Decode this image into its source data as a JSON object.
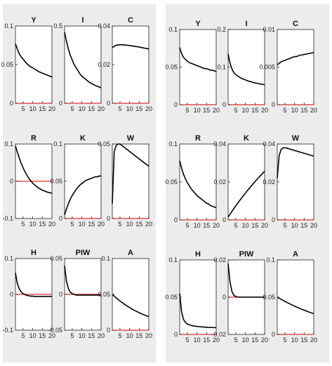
{
  "chart_data": [
    {
      "type": "line",
      "title": "Y",
      "x": [
        1,
        2,
        3,
        4,
        5,
        6,
        7,
        8,
        9,
        10,
        11,
        12,
        13,
        14,
        15,
        16,
        17,
        18,
        19,
        20
      ],
      "series": [
        {
          "values": [
            0.077,
            0.07,
            0.064,
            0.06,
            0.057,
            0.054,
            0.051,
            0.049,
            0.047,
            0.046,
            0.044,
            0.043,
            0.041,
            0.04,
            0.039,
            0.038,
            0.037,
            0.036,
            0.035,
            0.034
          ]
        }
      ],
      "zero_line": true,
      "ylim": [
        0,
        0.1
      ],
      "yticks": [
        "0.1",
        "0.05",
        "0"
      ],
      "xticks": [
        "5",
        "10",
        "15",
        "20"
      ]
    },
    {
      "type": "line",
      "title": "I",
      "x": [
        1,
        2,
        3,
        4,
        5,
        6,
        7,
        8,
        9,
        10,
        11,
        12,
        13,
        14,
        15,
        16,
        17,
        18,
        19,
        20
      ],
      "series": [
        {
          "values": [
            0.46,
            0.4,
            0.35,
            0.31,
            0.28,
            0.25,
            0.23,
            0.21,
            0.19,
            0.175,
            0.165,
            0.155,
            0.145,
            0.135,
            0.128,
            0.121,
            0.115,
            0.11,
            0.105,
            0.1
          ]
        }
      ],
      "zero_line": true,
      "ylim": [
        0,
        0.5
      ],
      "yticks": [
        "0.5",
        "0"
      ],
      "xticks": [
        "5",
        "10",
        "15",
        "20"
      ]
    },
    {
      "type": "line",
      "title": "C",
      "x": [
        1,
        2,
        3,
        4,
        5,
        6,
        7,
        8,
        9,
        10,
        11,
        12,
        13,
        14,
        15,
        16,
        17,
        18,
        19,
        20
      ],
      "series": [
        {
          "values": [
            0.0288,
            0.0295,
            0.03,
            0.0302,
            0.0303,
            0.0303,
            0.0302,
            0.0301,
            0.03,
            0.0299,
            0.0297,
            0.0296,
            0.0294,
            0.0293,
            0.0291,
            0.0289,
            0.0287,
            0.0285,
            0.0283,
            0.0281
          ]
        }
      ],
      "zero_line": true,
      "ylim": [
        0,
        0.04
      ],
      "yticks": [
        "0.04",
        "0.02",
        "0"
      ],
      "xticks": [
        "5",
        "10",
        "15",
        "20"
      ]
    },
    {
      "type": "line",
      "title": "R",
      "x": [
        1,
        2,
        3,
        4,
        5,
        6,
        7,
        8,
        9,
        10,
        11,
        12,
        13,
        14,
        15,
        16,
        17,
        18,
        19,
        20
      ],
      "series": [
        {
          "values": [
            0.095,
            0.078,
            0.062,
            0.048,
            0.036,
            0.025,
            0.016,
            0.008,
            0.001,
            -0.005,
            -0.01,
            -0.014,
            -0.018,
            -0.021,
            -0.024,
            -0.026,
            -0.028,
            -0.03,
            -0.031,
            -0.032
          ]
        }
      ],
      "zero_line": true,
      "ylim": [
        -0.1,
        0.1
      ],
      "yticks": [
        "0.1",
        "0",
        "-0.1"
      ],
      "xticks": [
        "5",
        "10",
        "15",
        "20"
      ]
    },
    {
      "type": "line",
      "title": "K",
      "x": [
        1,
        2,
        3,
        4,
        5,
        6,
        7,
        8,
        9,
        10,
        11,
        12,
        13,
        14,
        15,
        16,
        17,
        18,
        19,
        20
      ],
      "series": [
        {
          "values": [
            0.005,
            0.013,
            0.02,
            0.026,
            0.031,
            0.035,
            0.039,
            0.042,
            0.045,
            0.047,
            0.049,
            0.051,
            0.052,
            0.053,
            0.054,
            0.055,
            0.056,
            0.056,
            0.057,
            0.057
          ]
        }
      ],
      "zero_line": true,
      "ylim": [
        0,
        0.1
      ],
      "yticks": [
        "0.1",
        "0.05",
        "0"
      ],
      "xticks": [
        "5",
        "10",
        "15",
        "20"
      ]
    },
    {
      "type": "line",
      "title": "W",
      "x": [
        1,
        2,
        3,
        4,
        5,
        6,
        7,
        8,
        9,
        10,
        11,
        12,
        13,
        14,
        15,
        16,
        17,
        18,
        19,
        20
      ],
      "series": [
        {
          "values": [
            0.01,
            0.045,
            0.049,
            0.05,
            0.05,
            0.049,
            0.048,
            0.047,
            0.046,
            0.045,
            0.044,
            0.043,
            0.042,
            0.041,
            0.04,
            0.039,
            0.038,
            0.037,
            0.036,
            0.035
          ]
        }
      ],
      "zero_line": true,
      "ylim": [
        0,
        0.05
      ],
      "yticks": [
        "0.05",
        "0"
      ],
      "xticks": [
        "5",
        "10",
        "15",
        "20"
      ]
    },
    {
      "type": "line",
      "title": "H",
      "x": [
        1,
        2,
        3,
        4,
        5,
        6,
        7,
        8,
        9,
        10,
        11,
        12,
        13,
        14,
        15,
        16,
        17,
        18,
        19,
        20
      ],
      "series": [
        {
          "values": [
            0.06,
            0.03,
            0.015,
            0.007,
            0.002,
            -0.001,
            -0.003,
            -0.004,
            -0.005,
            -0.005,
            -0.006,
            -0.006,
            -0.006,
            -0.006,
            -0.006,
            -0.006,
            -0.006,
            -0.006,
            -0.006,
            -0.006
          ]
        }
      ],
      "zero_line": true,
      "ylim": [
        -0.1,
        0.1
      ],
      "yticks": [
        "0.1",
        "0",
        "-0.1"
      ],
      "xticks": [
        "5",
        "10",
        "15",
        "20"
      ]
    },
    {
      "type": "line",
      "title": "PIW",
      "x": [
        1,
        2,
        3,
        4,
        5,
        6,
        7,
        8,
        9,
        10,
        11,
        12,
        13,
        14,
        15,
        16,
        17,
        18,
        19,
        20
      ],
      "series": [
        {
          "values": [
            0.04,
            0.018,
            0.008,
            0.003,
            0.001,
            0.0,
            -0.001,
            -0.001,
            -0.001,
            -0.001,
            -0.001,
            -0.001,
            -0.001,
            -0.001,
            -0.001,
            -0.001,
            -0.001,
            -0.001,
            -0.001,
            -0.001
          ]
        }
      ],
      "zero_line": true,
      "ylim": [
        -0.05,
        0.05
      ],
      "yticks": [
        "0.05",
        "0",
        "-0.05"
      ],
      "xticks": [
        "5",
        "10",
        "15",
        "20"
      ]
    },
    {
      "type": "line",
      "title": "A",
      "x": [
        1,
        2,
        3,
        4,
        5,
        6,
        7,
        8,
        9,
        10,
        11,
        12,
        13,
        14,
        15,
        16,
        17,
        18,
        19,
        20
      ],
      "series": [
        {
          "values": [
            0.05,
            0.0475,
            0.0451,
            0.0429,
            0.0407,
            0.0387,
            0.0368,
            0.0349,
            0.0332,
            0.0315,
            0.0299,
            0.0284,
            0.027,
            0.0257,
            0.0244,
            0.0232,
            0.022,
            0.0209,
            0.0199,
            0.0189
          ]
        }
      ],
      "zero_line": true,
      "ylim": [
        0,
        0.1
      ],
      "yticks": [
        "0.1",
        "0.05",
        "0"
      ],
      "xticks": [
        "5",
        "10",
        "15",
        "20"
      ]
    },
    {
      "type": "line",
      "title": "Y",
      "x": [
        1,
        2,
        3,
        4,
        5,
        6,
        7,
        8,
        9,
        10,
        11,
        12,
        13,
        14,
        15,
        16,
        17,
        18,
        19,
        20
      ],
      "series": [
        {
          "values": [
            0.076,
            0.068,
            0.063,
            0.06,
            0.058,
            0.056,
            0.055,
            0.054,
            0.053,
            0.052,
            0.051,
            0.05,
            0.049,
            0.048,
            0.048,
            0.047,
            0.046,
            0.046,
            0.045,
            0.044
          ]
        }
      ],
      "zero_line": true,
      "ylim": [
        0,
        0.1
      ],
      "yticks": [
        "0.1",
        "0.05",
        "0"
      ],
      "xticks": [
        "5",
        "10",
        "15",
        "20"
      ]
    },
    {
      "type": "line",
      "title": "I",
      "x": [
        1,
        2,
        3,
        4,
        5,
        6,
        7,
        8,
        9,
        10,
        11,
        12,
        13,
        14,
        15,
        16,
        17,
        18,
        19,
        20
      ],
      "series": [
        {
          "values": [
            0.135,
            0.11,
            0.095,
            0.085,
            0.08,
            0.076,
            0.073,
            0.07,
            0.068,
            0.066,
            0.064,
            0.062,
            0.061,
            0.059,
            0.058,
            0.057,
            0.056,
            0.055,
            0.054,
            0.053
          ]
        }
      ],
      "zero_line": true,
      "ylim": [
        0,
        0.2
      ],
      "yticks": [
        "0.2",
        "0.1",
        "0"
      ],
      "xticks": [
        "5",
        "10",
        "15",
        "20"
      ]
    },
    {
      "type": "line",
      "title": "C",
      "x": [
        1,
        2,
        3,
        4,
        5,
        6,
        7,
        8,
        9,
        10,
        11,
        12,
        13,
        14,
        15,
        16,
        17,
        18,
        19,
        20
      ],
      "series": [
        {
          "values": [
            0.0053,
            0.0055,
            0.0057,
            0.0058,
            0.0059,
            0.006,
            0.0061,
            0.0062,
            0.0063,
            0.0064,
            0.0064,
            0.0065,
            0.0066,
            0.0066,
            0.0067,
            0.0067,
            0.0068,
            0.0068,
            0.0069,
            0.0069
          ]
        }
      ],
      "zero_line": true,
      "ylim": [
        0,
        0.01
      ],
      "yticks": [
        "0.01",
        "0.005",
        "0"
      ],
      "xticks": [
        "5",
        "10",
        "15",
        "20"
      ]
    },
    {
      "type": "line",
      "title": "R",
      "x": [
        1,
        2,
        3,
        4,
        5,
        6,
        7,
        8,
        9,
        10,
        11,
        12,
        13,
        14,
        15,
        16,
        17,
        18,
        19,
        20
      ],
      "series": [
        {
          "values": [
            0.078,
            0.068,
            0.06,
            0.054,
            0.049,
            0.045,
            0.041,
            0.038,
            0.035,
            0.032,
            0.03,
            0.028,
            0.026,
            0.024,
            0.022,
            0.021,
            0.019,
            0.018,
            0.017,
            0.016
          ]
        }
      ],
      "zero_line": true,
      "ylim": [
        0,
        0.1
      ],
      "yticks": [
        "0.1",
        "0.05",
        "0"
      ],
      "xticks": [
        "5",
        "10",
        "15",
        "20"
      ]
    },
    {
      "type": "line",
      "title": "K",
      "x": [
        1,
        2,
        3,
        4,
        5,
        6,
        7,
        8,
        9,
        10,
        11,
        12,
        13,
        14,
        15,
        16,
        17,
        18,
        19,
        20
      ],
      "series": [
        {
          "values": [
            0.0015,
            0.003,
            0.0045,
            0.006,
            0.0074,
            0.0088,
            0.0102,
            0.0115,
            0.0128,
            0.0141,
            0.0154,
            0.0166,
            0.0178,
            0.019,
            0.0202,
            0.0213,
            0.0224,
            0.0235,
            0.0246,
            0.0257
          ]
        }
      ],
      "zero_line": true,
      "ylim": [
        0,
        0.04
      ],
      "yticks": [
        "0.04",
        "0.02",
        "0"
      ],
      "xticks": [
        "5",
        "10",
        "15",
        "20"
      ]
    },
    {
      "type": "line",
      "title": "W",
      "x": [
        1,
        2,
        3,
        4,
        5,
        6,
        7,
        8,
        9,
        10,
        11,
        12,
        13,
        14,
        15,
        16,
        17,
        18,
        19,
        20
      ],
      "series": [
        {
          "values": [
            0.022,
            0.034,
            0.037,
            0.038,
            0.038,
            0.0378,
            0.0375,
            0.0372,
            0.0369,
            0.0366,
            0.0363,
            0.036,
            0.0357,
            0.0354,
            0.0351,
            0.0348,
            0.0345,
            0.0342,
            0.0339,
            0.0336
          ]
        }
      ],
      "zero_line": true,
      "ylim": [
        0,
        0.04
      ],
      "yticks": [
        "0.04",
        "0.02",
        "0"
      ],
      "xticks": [
        "5",
        "10",
        "15",
        "20"
      ]
    },
    {
      "type": "line",
      "title": "H",
      "x": [
        1,
        2,
        3,
        4,
        5,
        6,
        7,
        8,
        9,
        10,
        11,
        12,
        13,
        14,
        15,
        16,
        17,
        18,
        19,
        20
      ],
      "series": [
        {
          "values": [
            0.055,
            0.03,
            0.02,
            0.016,
            0.014,
            0.013,
            0.012,
            0.0115,
            0.011,
            0.0107,
            0.0104,
            0.0102,
            0.01,
            0.0098,
            0.0096,
            0.0094,
            0.0093,
            0.0092,
            0.0091,
            0.009
          ]
        }
      ],
      "zero_line": true,
      "ylim": [
        0,
        0.1
      ],
      "yticks": [
        "0.1",
        "0.05",
        "0"
      ],
      "xticks": [
        "5",
        "10",
        "15",
        "20"
      ]
    },
    {
      "type": "line",
      "title": "PIW",
      "x": [
        1,
        2,
        3,
        4,
        5,
        6,
        7,
        8,
        9,
        10,
        11,
        12,
        13,
        14,
        15,
        16,
        17,
        18,
        19,
        20
      ],
      "series": [
        {
          "values": [
            0.018,
            0.008,
            0.003,
            0.001,
            0.0003,
            0.0001,
            0.0,
            0.0,
            0.0,
            0.0,
            0.0,
            0.0,
            0.0,
            0.0,
            0.0,
            0.0,
            0.0,
            0.0,
            0.0,
            0.0
          ]
        }
      ],
      "zero_line": true,
      "ylim": [
        -0.02,
        0.02
      ],
      "yticks": [
        "0.02",
        "0",
        "-0.02"
      ],
      "xticks": [
        "5",
        "10",
        "15",
        "20"
      ]
    },
    {
      "type": "line",
      "title": "A",
      "x": [
        1,
        2,
        3,
        4,
        5,
        6,
        7,
        8,
        9,
        10,
        11,
        12,
        13,
        14,
        15,
        16,
        17,
        18,
        19,
        20
      ],
      "series": [
        {
          "values": [
            0.05,
            0.0485,
            0.0471,
            0.0457,
            0.0443,
            0.043,
            0.0417,
            0.0404,
            0.0392,
            0.038,
            0.0368,
            0.0357,
            0.0346,
            0.0335,
            0.0325,
            0.0315,
            0.0305,
            0.0296,
            0.0287,
            0.0278
          ]
        }
      ],
      "zero_line": true,
      "ylim": [
        0,
        0.1
      ],
      "yticks": [
        "0.1",
        "0.05",
        "0"
      ],
      "xticks": [
        "5",
        "10",
        "15",
        "20"
      ]
    }
  ]
}
